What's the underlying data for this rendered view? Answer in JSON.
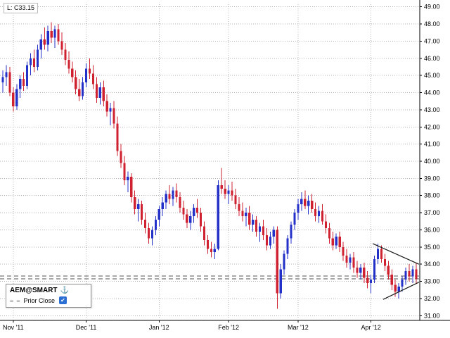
{
  "header": {
    "last_label": "L: C33.15"
  },
  "legend": {
    "symbol": "AEM@SMART",
    "anchor_icon": "⚓",
    "dash_sample": "– –",
    "prior_close_label": "Prior Close",
    "check_icon": "✔"
  },
  "colors": {
    "up": "#2431c8",
    "down": "#cf2130",
    "grid": "#b4b4b4",
    "axis": "#000000",
    "reference": "#555555",
    "trend": "#1a1a1a",
    "accent": "#2b6fd4",
    "background": "#ffffff"
  },
  "chart_data": {
    "type": "candlestick",
    "symbol": "AEM@SMART",
    "ylim": [
      30.85,
      49.15
    ],
    "last_price": 33.15,
    "prior_close": 33.32,
    "grid": true,
    "y_axis": [
      {
        "value": 49,
        "label": "49.00"
      },
      {
        "value": 48,
        "label": "48.00"
      },
      {
        "value": 47,
        "label": "47.00"
      },
      {
        "value": 46,
        "label": "46.00"
      },
      {
        "value": 45,
        "label": "45.00"
      },
      {
        "value": 44,
        "label": "44.00"
      },
      {
        "value": 43,
        "label": "43.00"
      },
      {
        "value": 42,
        "label": "42.00"
      },
      {
        "value": 41,
        "label": "41.00"
      },
      {
        "value": 40,
        "label": "40.00"
      },
      {
        "value": 39,
        "label": "39.00"
      },
      {
        "value": 38,
        "label": "38.00"
      },
      {
        "value": 37,
        "label": "37.00"
      },
      {
        "value": 36,
        "label": "36.00"
      },
      {
        "value": 35,
        "label": "35.00"
      },
      {
        "value": 34,
        "label": "34.00"
      },
      {
        "value": 33,
        "label": "33.00"
      },
      {
        "value": 32,
        "label": "32.00"
      },
      {
        "value": 31,
        "label": "31.00"
      }
    ],
    "x_axis": [
      {
        "index": 3,
        "label": "Nov '11"
      },
      {
        "index": 24,
        "label": "Dec '11"
      },
      {
        "index": 45,
        "label": "Jan '12"
      },
      {
        "index": 65,
        "label": "Feb '12"
      },
      {
        "index": 85,
        "label": "Mar '12"
      },
      {
        "index": 106,
        "label": "Apr '12"
      }
    ],
    "trend_lines": [
      {
        "x1": 106.5,
        "p1": 35.2,
        "x2": 119.8,
        "p2": 34.0
      },
      {
        "x1": 109.5,
        "p1": 31.95,
        "x2": 119.8,
        "p2": 32.95
      }
    ],
    "candles": [
      [
        44.6,
        45.3,
        44.0,
        44.9
      ],
      [
        44.9,
        45.6,
        44.4,
        45.2
      ],
      [
        45.2,
        45.5,
        43.8,
        44.0
      ],
      [
        44.0,
        44.3,
        42.9,
        43.2
      ],
      [
        43.2,
        44.5,
        43.0,
        44.2
      ],
      [
        44.2,
        45.0,
        43.7,
        44.8
      ],
      [
        44.8,
        45.2,
        44.1,
        44.4
      ],
      [
        44.4,
        45.8,
        44.2,
        45.6
      ],
      [
        45.6,
        46.3,
        45.0,
        46.0
      ],
      [
        46.0,
        46.5,
        45.2,
        45.5
      ],
      [
        45.5,
        46.8,
        45.3,
        46.5
      ],
      [
        46.5,
        47.4,
        46.0,
        47.1
      ],
      [
        47.1,
        47.8,
        46.5,
        46.8
      ],
      [
        46.8,
        47.9,
        46.4,
        47.6
      ],
      [
        47.6,
        48.1,
        46.9,
        47.2
      ],
      [
        47.2,
        47.9,
        46.6,
        47.7
      ],
      [
        47.7,
        48.0,
        46.8,
        47.0
      ],
      [
        47.0,
        47.5,
        46.2,
        46.5
      ],
      [
        46.5,
        46.9,
        45.6,
        45.9
      ],
      [
        45.9,
        46.4,
        45.1,
        45.4
      ],
      [
        45.4,
        45.8,
        44.6,
        44.9
      ],
      [
        44.9,
        45.3,
        43.9,
        44.2
      ],
      [
        44.2,
        44.8,
        43.5,
        43.8
      ],
      [
        43.8,
        44.9,
        43.6,
        44.6
      ],
      [
        44.6,
        45.7,
        44.3,
        45.4
      ],
      [
        45.4,
        46.0,
        44.8,
        45.1
      ],
      [
        45.1,
        45.6,
        44.2,
        44.5
      ],
      [
        44.5,
        44.9,
        43.4,
        43.7
      ],
      [
        43.7,
        44.6,
        43.3,
        44.3
      ],
      [
        44.3,
        44.7,
        43.2,
        43.5
      ],
      [
        43.5,
        43.9,
        42.6,
        42.9
      ],
      [
        42.9,
        43.4,
        42.1,
        43.1
      ],
      [
        43.1,
        43.5,
        41.9,
        42.2
      ],
      [
        42.2,
        42.6,
        40.3,
        40.6
      ],
      [
        40.6,
        41.0,
        39.6,
        39.9
      ],
      [
        39.9,
        40.3,
        38.6,
        38.9
      ],
      [
        38.9,
        39.4,
        38.2,
        39.1
      ],
      [
        39.1,
        39.3,
        37.6,
        37.9
      ],
      [
        37.9,
        38.3,
        36.9,
        37.2
      ],
      [
        37.2,
        37.8,
        36.5,
        37.5
      ],
      [
        37.5,
        37.7,
        36.3,
        36.6
      ],
      [
        36.6,
        37.0,
        35.8,
        36.1
      ],
      [
        36.1,
        36.4,
        35.2,
        35.5
      ],
      [
        35.5,
        36.2,
        35.1,
        36.0
      ],
      [
        36.0,
        36.8,
        35.7,
        36.6
      ],
      [
        36.6,
        37.4,
        36.2,
        37.2
      ],
      [
        37.2,
        37.9,
        36.8,
        37.6
      ],
      [
        37.6,
        38.3,
        37.2,
        38.1
      ],
      [
        38.1,
        38.6,
        37.5,
        37.8
      ],
      [
        37.8,
        38.5,
        37.4,
        38.3
      ],
      [
        38.3,
        38.7,
        37.6,
        37.9
      ],
      [
        37.9,
        38.2,
        37.0,
        37.3
      ],
      [
        37.3,
        37.7,
        36.6,
        36.9
      ],
      [
        36.9,
        37.2,
        36.1,
        36.4
      ],
      [
        36.4,
        37.1,
        36.0,
        36.8
      ],
      [
        36.8,
        37.5,
        36.4,
        37.3
      ],
      [
        37.3,
        37.8,
        36.7,
        37.0
      ],
      [
        37.0,
        37.3,
        35.9,
        36.2
      ],
      [
        36.2,
        36.5,
        35.1,
        35.4
      ],
      [
        35.4,
        35.7,
        34.6,
        34.9
      ],
      [
        34.9,
        35.3,
        34.4,
        34.7
      ],
      [
        34.7,
        35.2,
        34.3,
        34.9
      ],
      [
        34.9,
        38.9,
        34.8,
        38.6
      ],
      [
        38.6,
        39.6,
        38.1,
        38.4
      ],
      [
        38.4,
        38.9,
        37.8,
        38.1
      ],
      [
        38.1,
        38.6,
        37.5,
        38.3
      ],
      [
        38.3,
        38.8,
        37.7,
        38.0
      ],
      [
        38.0,
        38.4,
        37.2,
        37.5
      ],
      [
        37.5,
        37.9,
        36.8,
        37.1
      ],
      [
        37.1,
        37.6,
        36.5,
        36.8
      ],
      [
        36.8,
        37.3,
        36.2,
        37.0
      ],
      [
        37.0,
        37.4,
        36.0,
        36.3
      ],
      [
        36.3,
        36.9,
        35.9,
        36.6
      ],
      [
        36.6,
        36.8,
        35.6,
        35.9
      ],
      [
        35.9,
        36.4,
        35.3,
        36.2
      ],
      [
        36.2,
        36.6,
        35.4,
        35.7
      ],
      [
        35.7,
        36.1,
        34.8,
        35.1
      ],
      [
        35.1,
        35.9,
        34.9,
        35.6
      ],
      [
        35.6,
        36.2,
        35.2,
        36.0
      ],
      [
        36.0,
        36.2,
        31.4,
        32.3
      ],
      [
        32.3,
        34.0,
        32.0,
        33.7
      ],
      [
        33.7,
        34.8,
        33.4,
        34.6
      ],
      [
        34.6,
        35.7,
        34.3,
        35.5
      ],
      [
        35.5,
        36.5,
        35.2,
        36.3
      ],
      [
        36.3,
        37.2,
        36.0,
        37.0
      ],
      [
        37.0,
        37.8,
        36.6,
        37.5
      ],
      [
        37.5,
        38.2,
        37.1,
        37.8
      ],
      [
        37.8,
        38.3,
        37.2,
        37.4
      ],
      [
        37.4,
        38.0,
        36.9,
        37.7
      ],
      [
        37.7,
        38.1,
        37.0,
        37.2
      ],
      [
        37.2,
        37.6,
        36.5,
        36.8
      ],
      [
        36.8,
        37.4,
        36.4,
        37.1
      ],
      [
        37.1,
        37.5,
        36.3,
        36.5
      ],
      [
        36.5,
        36.9,
        35.8,
        36.1
      ],
      [
        36.1,
        36.4,
        35.2,
        35.5
      ],
      [
        35.5,
        35.9,
        34.8,
        35.1
      ],
      [
        35.1,
        35.8,
        34.9,
        35.6
      ],
      [
        35.6,
        35.9,
        34.7,
        35.0
      ],
      [
        35.0,
        35.3,
        34.2,
        34.5
      ],
      [
        34.5,
        34.9,
        33.8,
        34.1
      ],
      [
        34.1,
        34.6,
        33.7,
        34.4
      ],
      [
        34.4,
        34.7,
        33.5,
        33.8
      ],
      [
        33.8,
        34.2,
        33.2,
        33.5
      ],
      [
        33.5,
        34.0,
        33.1,
        33.8
      ],
      [
        33.8,
        34.1,
        32.9,
        33.2
      ],
      [
        33.2,
        33.6,
        32.6,
        32.9
      ],
      [
        32.9,
        33.4,
        32.3,
        33.1
      ],
      [
        33.1,
        34.5,
        32.9,
        34.3
      ],
      [
        34.3,
        35.2,
        34.0,
        34.9
      ],
      [
        34.9,
        35.1,
        34.1,
        34.3
      ],
      [
        34.3,
        34.6,
        33.6,
        33.9
      ],
      [
        33.9,
        34.2,
        33.1,
        33.4
      ],
      [
        33.4,
        33.7,
        32.5,
        32.8
      ],
      [
        32.8,
        33.1,
        32.1,
        32.4
      ],
      [
        32.4,
        32.9,
        32.0,
        32.7
      ],
      [
        32.7,
        33.3,
        32.4,
        33.1
      ],
      [
        33.1,
        33.8,
        32.8,
        33.6
      ],
      [
        33.6,
        34.0,
        33.0,
        33.3
      ],
      [
        33.3,
        33.9,
        32.9,
        33.7
      ],
      [
        33.7,
        34.1,
        32.9,
        33.15
      ]
    ]
  }
}
